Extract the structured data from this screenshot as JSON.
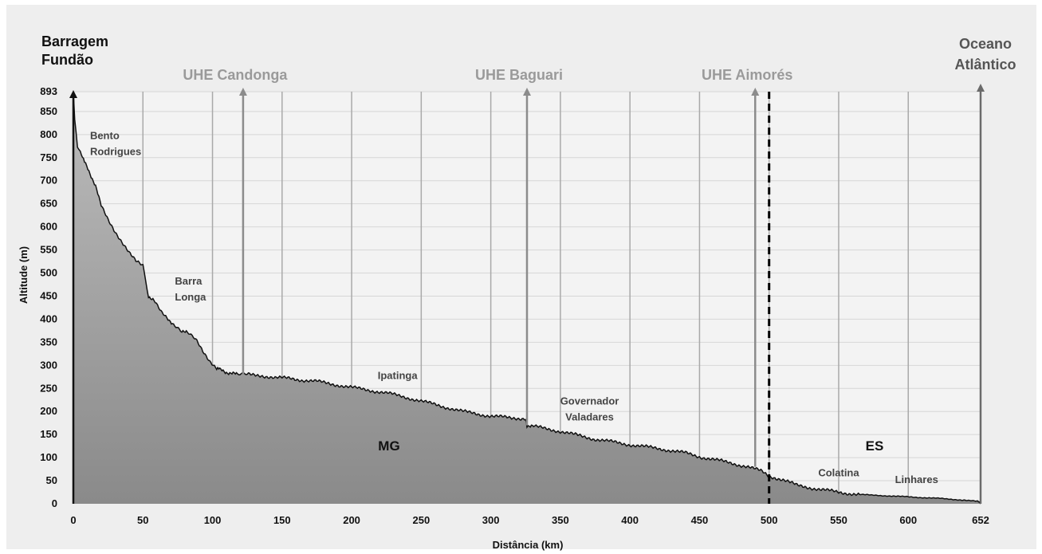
{
  "chart_data": {
    "type": "area",
    "title": "",
    "xlabel": "Distância (km)",
    "ylabel": "Altitude (m)",
    "xlim": [
      0,
      652
    ],
    "ylim": [
      0,
      893
    ],
    "x_ticks": [
      0,
      50,
      100,
      150,
      200,
      250,
      300,
      350,
      400,
      450,
      500,
      550,
      600,
      652
    ],
    "y_ticks": [
      0,
      50,
      100,
      150,
      200,
      250,
      300,
      350,
      400,
      450,
      500,
      550,
      600,
      650,
      700,
      750,
      800,
      850,
      893
    ],
    "grid": true,
    "series": [
      {
        "x": [
          0,
          1,
          3,
          5,
          8,
          12,
          16,
          20,
          25,
          30,
          35,
          40,
          45,
          50,
          52,
          54,
          58,
          63,
          68,
          72,
          78,
          82,
          88,
          93,
          98,
          103,
          106,
          110,
          118,
          125,
          135,
          145,
          155,
          165,
          175,
          185,
          200,
          215,
          225,
          240,
          260,
          280,
          300,
          315,
          325,
          326,
          330,
          345,
          360,
          375,
          400,
          420,
          440,
          450,
          470,
          485,
          495,
          500,
          510,
          520,
          535,
          550,
          565,
          580,
          600,
          620,
          640,
          650,
          651,
          652
        ],
        "y": [
          893,
          830,
          770,
          765,
          740,
          715,
          690,
          645,
          615,
          590,
          568,
          545,
          525,
          515,
          480,
          450,
          440,
          415,
          400,
          390,
          375,
          370,
          355,
          330,
          310,
          295,
          290,
          285,
          280,
          280,
          278,
          273,
          272,
          268,
          265,
          260,
          252,
          245,
          240,
          230,
          215,
          200,
          190,
          186,
          185,
          170,
          168,
          160,
          150,
          140,
          128,
          120,
          110,
          102,
          90,
          80,
          70,
          60,
          52,
          40,
          32,
          25,
          20,
          18,
          15,
          12,
          8,
          5,
          3,
          0
        ]
      }
    ],
    "annotations": {
      "dams": [
        {
          "label": "UHE Candonga",
          "x": 122
        },
        {
          "label": "UHE Baguari",
          "x": 326
        },
        {
          "label": "UHE Aimorés",
          "x": 490
        }
      ],
      "places": [
        {
          "label": "Bento\nRodrigues",
          "x": 12,
          "y": 790
        },
        {
          "label": "Barra\nLonga",
          "x": 73,
          "y": 475
        },
        {
          "label": "Ipatinga",
          "x": 233,
          "y": 270
        },
        {
          "label": "Governador\nValadares",
          "x": 371,
          "y": 215
        },
        {
          "label": "Colatina",
          "x": 550,
          "y": 60
        },
        {
          "label": "Linhares",
          "x": 606,
          "y": 45
        }
      ],
      "start_label": "Barragem\nFundão",
      "end_label": "Oceano\nAtlântico",
      "state_left": "MG",
      "state_right": "ES",
      "border_x": 500
    }
  }
}
